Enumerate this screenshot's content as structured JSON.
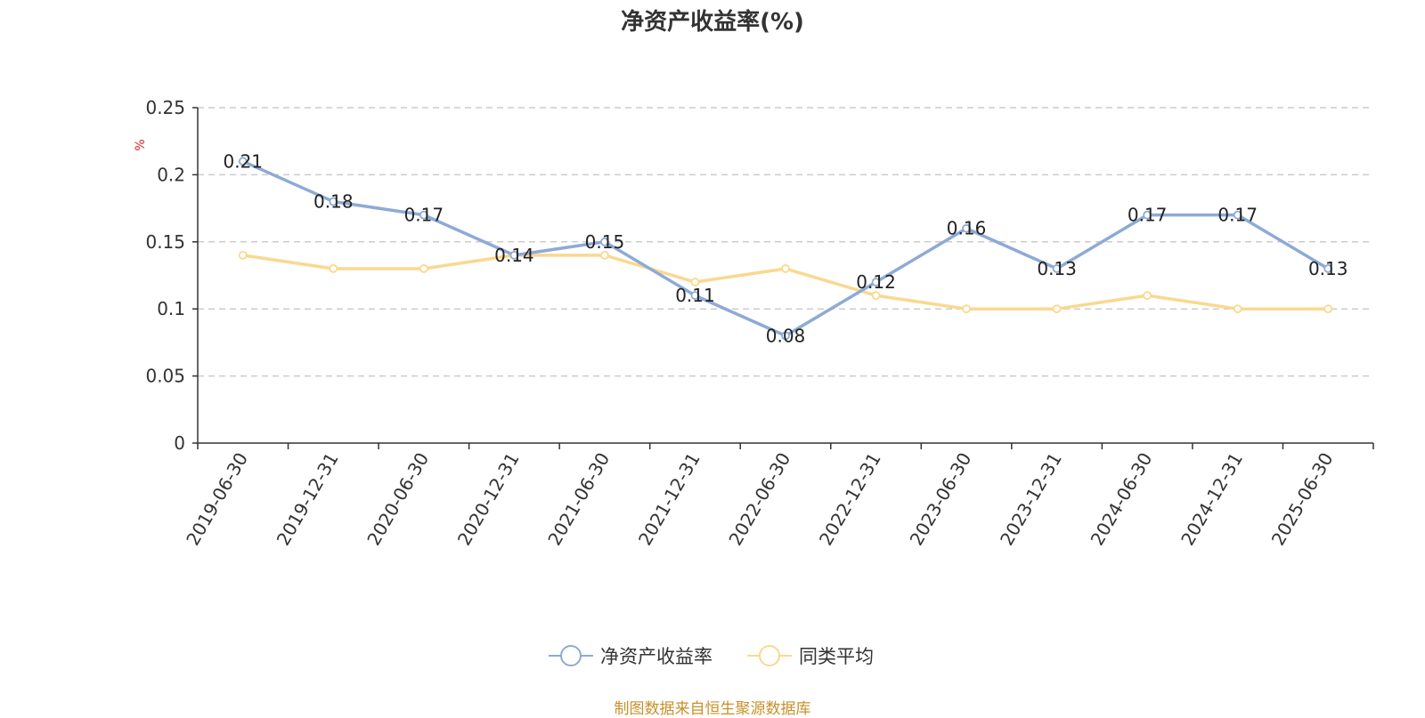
{
  "chart_data": {
    "type": "line",
    "title": "净资产收益率(%)",
    "ylabel": "%",
    "xlabel": "",
    "categories": [
      "2019-06-30",
      "2019-12-31",
      "2020-06-30",
      "2020-12-31",
      "2021-06-30",
      "2021-12-31",
      "2022-06-30",
      "2022-12-31",
      "2023-06-30",
      "2023-12-31",
      "2024-06-30",
      "2024-12-31",
      "2025-06-30"
    ],
    "series": [
      {
        "name": "净资产收益率",
        "color": "#8eaad6",
        "labels": true,
        "values": [
          0.21,
          0.18,
          0.17,
          0.14,
          0.15,
          0.11,
          0.08,
          0.12,
          0.16,
          0.13,
          0.17,
          0.17,
          0.13
        ]
      },
      {
        "name": "同类平均",
        "color": "#fad88e",
        "labels": false,
        "values": [
          0.14,
          0.13,
          0.13,
          0.14,
          0.14,
          0.12,
          0.13,
          0.11,
          0.1,
          0.1,
          0.11,
          0.1,
          0.1
        ]
      }
    ],
    "ylim": [
      0,
      0.25
    ],
    "yticks": [
      "0",
      "0.05",
      "0.1",
      "0.15",
      "0.2",
      "0.25"
    ],
    "grid": "horizontal-dashed",
    "legend_position": "bottom-center",
    "unit_color": "#e02020"
  },
  "source_note": "制图数据来自恒生聚源数据库"
}
